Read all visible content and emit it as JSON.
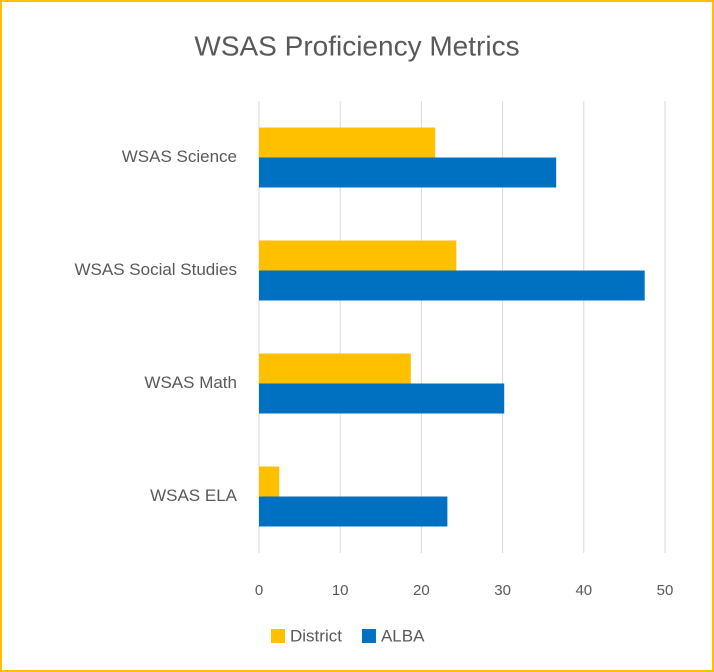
{
  "chart_data": {
    "type": "bar",
    "orientation": "horizontal",
    "title": "WSAS Proficiency Metrics",
    "categories": [
      "WSAS ELA",
      "WSAS Math",
      "WSAS Social Studies",
      "WSAS Science"
    ],
    "series": [
      {
        "name": "District",
        "color": "#ffc000",
        "values": [
          2.5,
          18.7,
          24.3,
          21.7
        ]
      },
      {
        "name": "ALBA",
        "color": "#0070c0",
        "values": [
          23.2,
          30.2,
          47.5,
          36.6
        ]
      }
    ],
    "xlim": [
      0,
      50
    ],
    "xticks": [
      0,
      10,
      20,
      30,
      40,
      50
    ],
    "grid": true,
    "legend": "bottom"
  }
}
